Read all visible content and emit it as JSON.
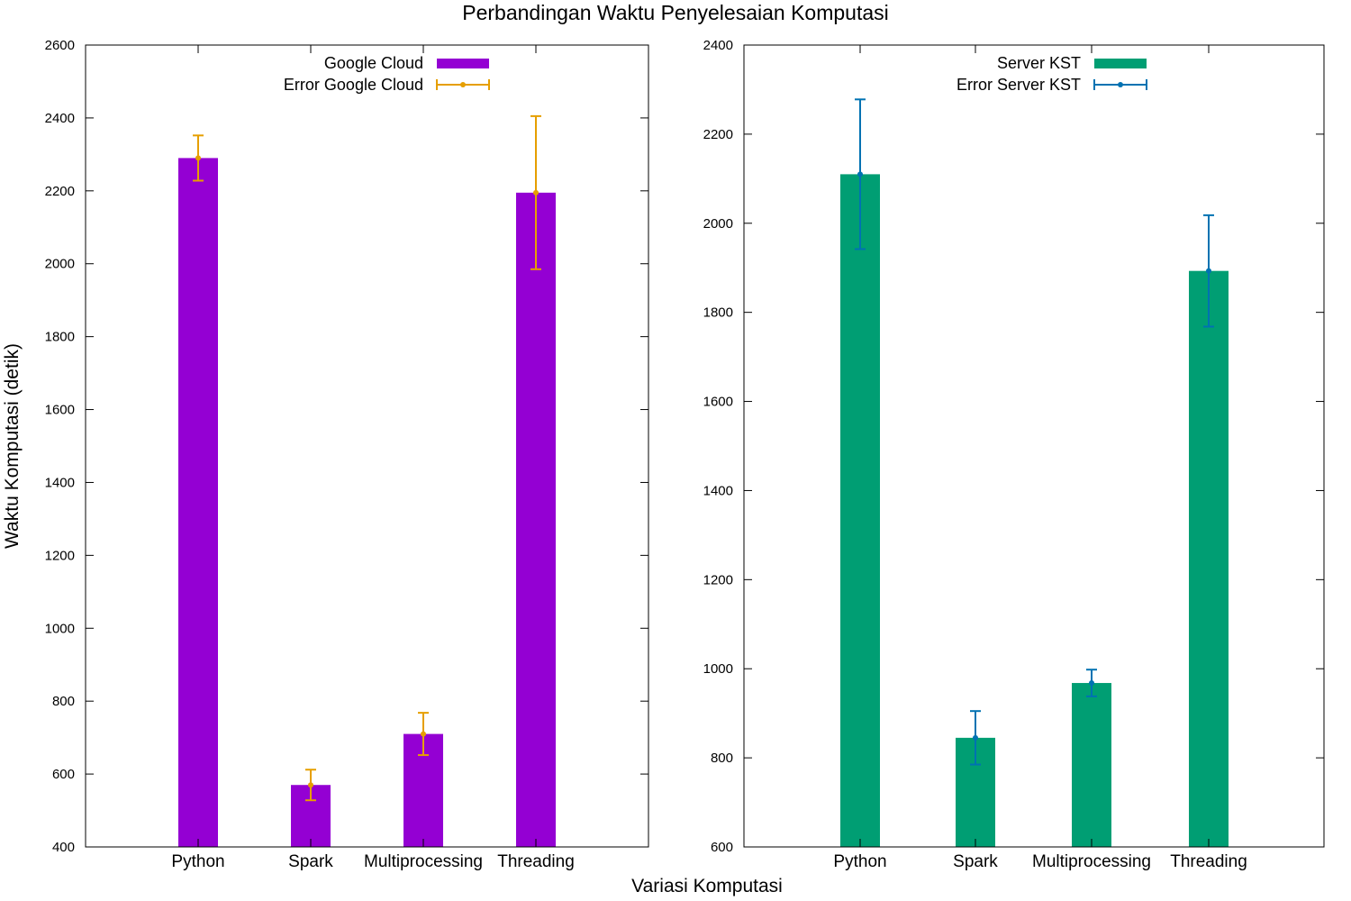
{
  "figure": {
    "title": "Perbandingan Waktu Penyelesaian Komputasi",
    "xlabel": "Variasi Komputasi",
    "ylabel": "Waktu Komputasi (detik)"
  },
  "chart_data": [
    {
      "type": "bar",
      "categories": [
        "Python",
        "Spark",
        "Multiprocessing",
        "Threading"
      ],
      "series": [
        {
          "name": "Google Cloud",
          "error_name": "Error Google Cloud",
          "values": [
            2290,
            570,
            710,
            2195
          ],
          "errors": [
            62,
            42,
            58,
            210
          ],
          "color": "#9400d3",
          "error_color": "#e69f00"
        }
      ],
      "ylim": [
        400,
        2600
      ],
      "yticks": [
        400,
        600,
        800,
        1000,
        1200,
        1400,
        1600,
        1800,
        2000,
        2200,
        2400,
        2600
      ],
      "legend_position": "top-center",
      "grid": false
    },
    {
      "type": "bar",
      "categories": [
        "Python",
        "Spark",
        "Multiprocessing",
        "Threading"
      ],
      "series": [
        {
          "name": "Server KST",
          "error_name": "Error Server KST",
          "values": [
            2110,
            845,
            968,
            1893
          ],
          "errors": [
            168,
            60,
            30,
            125
          ],
          "color": "#009e73",
          "error_color": "#0072b2"
        }
      ],
      "ylim": [
        600,
        2400
      ],
      "yticks": [
        600,
        800,
        1000,
        1200,
        1400,
        1600,
        1800,
        2000,
        2200,
        2400
      ],
      "legend_position": "top-center",
      "grid": false
    }
  ]
}
